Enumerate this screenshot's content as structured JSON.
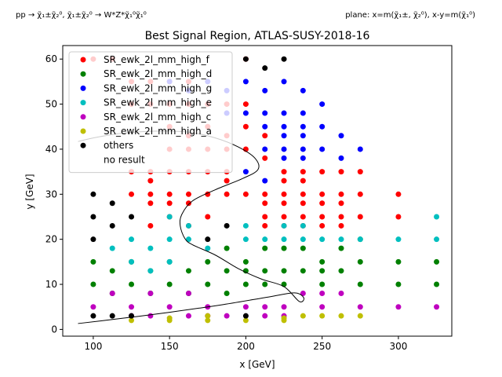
{
  "header": {
    "process": "pp → χ̃₁±χ̃₂⁰, χ̃₁±χ̃₂⁰ → W*Z*χ̃₁⁰χ̃₁⁰",
    "plane": "plane: x=m(χ̃₁±, χ̃₂⁰), x-y=m(χ̃₁⁰)"
  },
  "chart_data": {
    "type": "scatter",
    "title": "Best Signal Region, ATLAS-SUSY-2018-16",
    "xlabel": "x [GeV]",
    "ylabel": "y [GeV]",
    "xlim": [
      80,
      335
    ],
    "ylim": [
      -1.5,
      63
    ],
    "xticks": [
      100,
      150,
      200,
      250,
      300
    ],
    "yticks": [
      0,
      10,
      20,
      30,
      40,
      50,
      60
    ],
    "grid": false,
    "legend_position": "upper-left",
    "series": [
      {
        "name": "SR_ewk_2l_mm_high_f",
        "color": "#ff0000",
        "points": [
          [
            200,
            60
          ],
          [
            100,
            60
          ],
          [
            112.5,
            60
          ],
          [
            125,
            55
          ],
          [
            137.5,
            55
          ],
          [
            150,
            55
          ],
          [
            162.5,
            55
          ],
          [
            125,
            50
          ],
          [
            137.5,
            50
          ],
          [
            150,
            50
          ],
          [
            162.5,
            50
          ],
          [
            175,
            50
          ],
          [
            187.5,
            50
          ],
          [
            200,
            50
          ],
          [
            200,
            45
          ],
          [
            212.5,
            43
          ],
          [
            200,
            40
          ],
          [
            212.5,
            38
          ],
          [
            225,
            35
          ],
          [
            237.5,
            35
          ],
          [
            250,
            35
          ],
          [
            262.5,
            35
          ],
          [
            275,
            35
          ],
          [
            225,
            33
          ],
          [
            237.5,
            33
          ],
          [
            125,
            30
          ],
          [
            137.5,
            30
          ],
          [
            150,
            30
          ],
          [
            162.5,
            30
          ],
          [
            175,
            30
          ],
          [
            187.5,
            30
          ],
          [
            200,
            30
          ],
          [
            212.5,
            30
          ],
          [
            225,
            30
          ],
          [
            237.5,
            30
          ],
          [
            250,
            30
          ],
          [
            262.5,
            30
          ],
          [
            275,
            30
          ],
          [
            300,
            30
          ],
          [
            137.5,
            28
          ],
          [
            150,
            28
          ],
          [
            162.5,
            28
          ],
          [
            212.5,
            28
          ],
          [
            225,
            28
          ],
          [
            237.5,
            28
          ],
          [
            250,
            28
          ],
          [
            262.5,
            28
          ],
          [
            150,
            25
          ],
          [
            175,
            25
          ],
          [
            212.5,
            25
          ],
          [
            225,
            25
          ],
          [
            237.5,
            25
          ],
          [
            250,
            25
          ],
          [
            262.5,
            25
          ],
          [
            275,
            25
          ],
          [
            300,
            25
          ],
          [
            137.5,
            23
          ],
          [
            162.5,
            23
          ],
          [
            212.5,
            23
          ],
          [
            225,
            23
          ],
          [
            237.5,
            23
          ],
          [
            250,
            23
          ],
          [
            262.5,
            23
          ],
          [
            150,
            45
          ],
          [
            175,
            45
          ],
          [
            162.5,
            43
          ],
          [
            187.5,
            43
          ],
          [
            150,
            40
          ],
          [
            162.5,
            40
          ],
          [
            175,
            40
          ],
          [
            187.5,
            40
          ],
          [
            125,
            35
          ],
          [
            137.5,
            35
          ],
          [
            150,
            35
          ],
          [
            162.5,
            35
          ],
          [
            175,
            35
          ],
          [
            187.5,
            35
          ],
          [
            137.5,
            33
          ],
          [
            187.5,
            33
          ]
        ]
      },
      {
        "name": "SR_ewk_2l_mm_high_d",
        "color": "#008000",
        "points": [
          [
            100,
            15
          ],
          [
            112.5,
            13
          ],
          [
            125,
            15
          ],
          [
            137.5,
            13
          ],
          [
            150,
            15
          ],
          [
            162.5,
            13
          ],
          [
            175,
            15
          ],
          [
            187.5,
            18
          ],
          [
            200,
            15
          ],
          [
            212.5,
            18
          ],
          [
            225,
            18
          ],
          [
            237.5,
            18
          ],
          [
            250,
            15
          ],
          [
            275,
            15
          ],
          [
            300,
            15
          ],
          [
            325,
            15
          ],
          [
            187.5,
            13
          ],
          [
            200,
            13
          ],
          [
            212.5,
            13
          ],
          [
            225,
            13
          ],
          [
            237.5,
            13
          ],
          [
            250,
            13
          ],
          [
            262.5,
            13
          ],
          [
            100,
            10
          ],
          [
            112.5,
            8
          ],
          [
            125,
            10
          ],
          [
            137.5,
            8
          ],
          [
            150,
            10
          ],
          [
            162.5,
            8
          ],
          [
            175,
            10
          ],
          [
            187.5,
            8
          ],
          [
            200,
            10
          ],
          [
            212.5,
            10
          ],
          [
            225,
            10
          ],
          [
            250,
            10
          ],
          [
            275,
            10
          ],
          [
            300,
            10
          ],
          [
            325,
            10
          ],
          [
            262.5,
            18
          ],
          [
            275,
            20
          ]
        ]
      },
      {
        "name": "SR_ewk_2l_mm_high_g",
        "color": "#0000ff",
        "points": [
          [
            150,
            55
          ],
          [
            162.5,
            53
          ],
          [
            175,
            55
          ],
          [
            187.5,
            53
          ],
          [
            200,
            55
          ],
          [
            212.5,
            53
          ],
          [
            225,
            55
          ],
          [
            237.5,
            53
          ],
          [
            187.5,
            48
          ],
          [
            200,
            48
          ],
          [
            212.5,
            48
          ],
          [
            225,
            48
          ],
          [
            237.5,
            48
          ],
          [
            250,
            50
          ],
          [
            250,
            45
          ],
          [
            262.5,
            43
          ],
          [
            212.5,
            45
          ],
          [
            225,
            45
          ],
          [
            237.5,
            45
          ],
          [
            225,
            43
          ],
          [
            237.5,
            43
          ],
          [
            250,
            40
          ],
          [
            275,
            40
          ],
          [
            262.5,
            38
          ],
          [
            212.5,
            40
          ],
          [
            225,
            40
          ],
          [
            237.5,
            40
          ],
          [
            225,
            38
          ],
          [
            237.5,
            38
          ],
          [
            212.5,
            33
          ],
          [
            200,
            35
          ]
        ]
      },
      {
        "name": "SR_ewk_2l_mm_high_e",
        "color": "#00bfbf",
        "points": [
          [
            112.5,
            18
          ],
          [
            125,
            20
          ],
          [
            137.5,
            18
          ],
          [
            150,
            20
          ],
          [
            162.5,
            20
          ],
          [
            175,
            18
          ],
          [
            200,
            20
          ],
          [
            212.5,
            20
          ],
          [
            225,
            20
          ],
          [
            237.5,
            20
          ],
          [
            250,
            20
          ],
          [
            262.5,
            20
          ],
          [
            275,
            20
          ],
          [
            300,
            20
          ],
          [
            325,
            20
          ],
          [
            162.5,
            23
          ],
          [
            200,
            23
          ],
          [
            225,
            23
          ],
          [
            237.5,
            23
          ],
          [
            325,
            25
          ],
          [
            150,
            25
          ],
          [
            125,
            15
          ],
          [
            150,
            15
          ],
          [
            137.5,
            13
          ]
        ]
      },
      {
        "name": "SR_ewk_2l_mm_high_c",
        "color": "#bf00bf",
        "points": [
          [
            100,
            5
          ],
          [
            112.5,
            8
          ],
          [
            125,
            5
          ],
          [
            137.5,
            8
          ],
          [
            150,
            5
          ],
          [
            162.5,
            8
          ],
          [
            175,
            5
          ],
          [
            187.5,
            3
          ],
          [
            200,
            5
          ],
          [
            212.5,
            5
          ],
          [
            225,
            5
          ],
          [
            250,
            5
          ],
          [
            262.5,
            8
          ],
          [
            275,
            5
          ],
          [
            300,
            5
          ],
          [
            325,
            5
          ],
          [
            237.5,
            8
          ],
          [
            250,
            8
          ],
          [
            125,
            3
          ],
          [
            137.5,
            3
          ],
          [
            162.5,
            3
          ],
          [
            175,
            3
          ],
          [
            212.5,
            3
          ],
          [
            225,
            3
          ]
        ]
      },
      {
        "name": "SR_ewk_2l_mm_high_a",
        "color": "#bfbf00",
        "points": [
          [
            125,
            2
          ],
          [
            150,
            2
          ],
          [
            175,
            2
          ],
          [
            200,
            2
          ],
          [
            225,
            2
          ],
          [
            237.5,
            3
          ],
          [
            250,
            3
          ],
          [
            262.5,
            3
          ],
          [
            275,
            3
          ],
          [
            175,
            3
          ],
          [
            150,
            2.5
          ],
          [
            225,
            2.5
          ]
        ]
      },
      {
        "name": "others",
        "color": "#000000",
        "points": [
          [
            100,
            30
          ],
          [
            112.5,
            28
          ],
          [
            100,
            25
          ],
          [
            112.5,
            23
          ],
          [
            125,
            25
          ],
          [
            100,
            20
          ],
          [
            175,
            20
          ],
          [
            187.5,
            23
          ],
          [
            200,
            60
          ],
          [
            212.5,
            58
          ],
          [
            225,
            60
          ],
          [
            100,
            3
          ],
          [
            112.5,
            3
          ],
          [
            125,
            3
          ],
          [
            200,
            3
          ]
        ]
      },
      {
        "name": "no result",
        "color": "#ffffff",
        "points": []
      }
    ],
    "exclusion_curve": [
      [
        90,
        1.3
      ],
      [
        120,
        2.5
      ],
      [
        150,
        3.8
      ],
      [
        185,
        5.5
      ],
      [
        215,
        7.2
      ],
      [
        232,
        8.1
      ],
      [
        238,
        7.0
      ],
      [
        235,
        6.2
      ],
      [
        225,
        9.5
      ],
      [
        210,
        11.2
      ],
      [
        195,
        13.5
      ],
      [
        180,
        16.5
      ],
      [
        165,
        18.8
      ],
      [
        160,
        20.2
      ],
      [
        157,
        23.0
      ],
      [
        158,
        25.5
      ],
      [
        165,
        28.5
      ],
      [
        180,
        31.0
      ],
      [
        198,
        33.5
      ],
      [
        208,
        35.5
      ],
      [
        206,
        38.0
      ],
      [
        195,
        40.5
      ],
      [
        180,
        42.5
      ],
      [
        162,
        43.8
      ],
      [
        140,
        44.0
      ],
      [
        118,
        43.5
      ],
      [
        100,
        42.5
      ],
      [
        90,
        41.7
      ]
    ]
  }
}
